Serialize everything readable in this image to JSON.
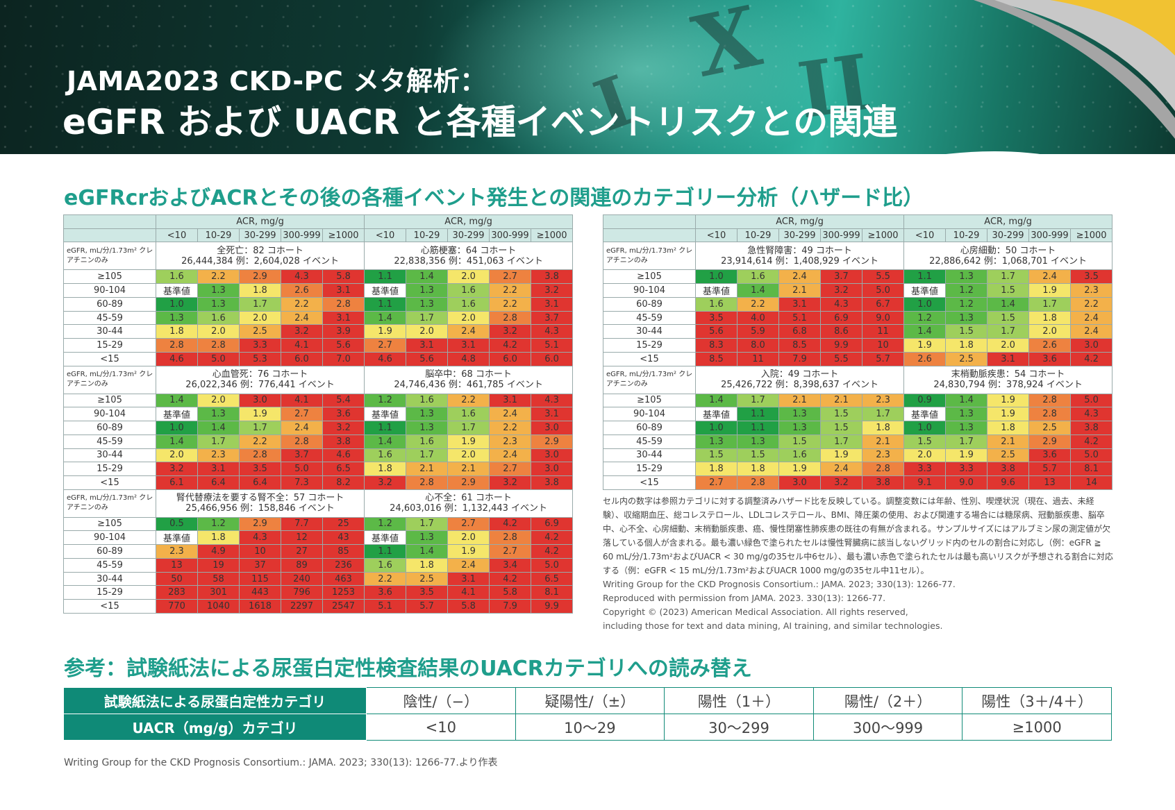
{
  "header": {
    "line1": "JAMA2023 CKD-PC メタ解析：",
    "line2": "eGFR および UACR と各種イベントリスクとの関連"
  },
  "subtitle": "eGFRcrおよびACRとその後の各種イベント発生との関連のカテゴリー分析（ハザード比）",
  "acr_label": "ACR, mg/g",
  "acr_cols": [
    "<10",
    "10-29",
    "30-299",
    "300-999",
    "≥1000"
  ],
  "egfr_rows": [
    "≥105",
    "90-104",
    "60-89",
    "45-59",
    "30-44",
    "15-29",
    "<15"
  ],
  "egfr_desc": "eGFR, mL/分/1.73m² クレアチニンのみ",
  "colors": {
    "dgreen": "#21a045",
    "green": "#5cb947",
    "lgreen": "#9ecf5c",
    "yellow": "#f5e66a",
    "orange": "#f3b14a",
    "dorange": "#ee8240",
    "red": "#e03530",
    "ref": "#ffffff"
  },
  "panels": [
    {
      "title": "全死亡：82 コホート",
      "counts": "26,444,384 例：2,604,028 イベント",
      "values": [
        [
          "1.6",
          "2.2",
          "2.9",
          "4.3",
          "5.8"
        ],
        [
          "基準値",
          "1.3",
          "1.8",
          "2.6",
          "3.1"
        ],
        [
          "1.0",
          "1.3",
          "1.7",
          "2.2",
          "2.8"
        ],
        [
          "1.3",
          "1.6",
          "2.0",
          "2.4",
          "3.1"
        ],
        [
          "1.8",
          "2.0",
          "2.5",
          "3.2",
          "3.9"
        ],
        [
          "2.8",
          "2.8",
          "3.3",
          "4.1",
          "5.6"
        ],
        [
          "4.6",
          "5.0",
          "5.3",
          "6.0",
          "7.0"
        ]
      ]
    },
    {
      "title": "心筋梗塞：64 コホート",
      "counts": "22,838,356 例：451,063 イベント",
      "values": [
        [
          "1.1",
          "1.4",
          "2.0",
          "2.7",
          "3.8"
        ],
        [
          "基準値",
          "1.3",
          "1.6",
          "2.2",
          "3.2"
        ],
        [
          "1.1",
          "1.3",
          "1.6",
          "2.2",
          "3.1"
        ],
        [
          "1.4",
          "1.7",
          "2.0",
          "2.8",
          "3.7"
        ],
        [
          "1.9",
          "2.0",
          "2.4",
          "3.2",
          "4.3"
        ],
        [
          "2.7",
          "3.1",
          "3.1",
          "4.2",
          "5.1"
        ],
        [
          "4.6",
          "5.6",
          "4.8",
          "6.0",
          "6.0"
        ]
      ]
    },
    {
      "title": "急性腎障害：49 コホート",
      "counts": "23,914,614 例：1,408,929 イベント",
      "values": [
        [
          "1.0",
          "1.6",
          "2.4",
          "3.7",
          "5.5"
        ],
        [
          "基準値",
          "1.4",
          "2.1",
          "3.2",
          "5.0"
        ],
        [
          "1.6",
          "2.2",
          "3.1",
          "4.3",
          "6.7"
        ],
        [
          "3.5",
          "4.0",
          "5.1",
          "6.9",
          "9.0"
        ],
        [
          "5.6",
          "5.9",
          "6.8",
          "8.6",
          "11"
        ],
        [
          "8.3",
          "8.0",
          "8.5",
          "9.9",
          "10"
        ],
        [
          "8.5",
          "11",
          "7.9",
          "5.5",
          "5.7"
        ]
      ]
    },
    {
      "title": "心房細動：50 コホート",
      "counts": "22,886,642 例：1,068,701 イベント",
      "values": [
        [
          "1.1",
          "1.3",
          "1.7",
          "2.4",
          "3.5"
        ],
        [
          "基準値",
          "1.2",
          "1.5",
          "1.9",
          "2.3"
        ],
        [
          "1.0",
          "1.2",
          "1.4",
          "1.7",
          "2.2"
        ],
        [
          "1.2",
          "1.3",
          "1.5",
          "1.8",
          "2.4"
        ],
        [
          "1.4",
          "1.5",
          "1.7",
          "2.0",
          "2.4"
        ],
        [
          "1.9",
          "1.8",
          "2.0",
          "2.6",
          "3.0"
        ],
        [
          "2.6",
          "2.5",
          "3.1",
          "3.6",
          "4.2"
        ]
      ]
    },
    {
      "title": "心血管死：76 コホート",
      "counts": "26,022,346 例：776,441 イベント",
      "values": [
        [
          "1.4",
          "2.0",
          "3.0",
          "4.1",
          "5.4"
        ],
        [
          "基準値",
          "1.3",
          "1.9",
          "2.7",
          "3.6"
        ],
        [
          "1.0",
          "1.4",
          "1.7",
          "2.4",
          "3.2"
        ],
        [
          "1.4",
          "1.7",
          "2.2",
          "2.8",
          "3.8"
        ],
        [
          "2.0",
          "2.3",
          "2.8",
          "3.7",
          "4.6"
        ],
        [
          "3.2",
          "3.1",
          "3.5",
          "5.0",
          "6.5"
        ],
        [
          "6.1",
          "6.4",
          "6.4",
          "7.3",
          "8.2"
        ]
      ]
    },
    {
      "title": "脳卒中：68 コホート",
      "counts": "24,746,436 例：461,785 イベント",
      "values": [
        [
          "1.2",
          "1.6",
          "2.2",
          "3.1",
          "4.3"
        ],
        [
          "基準値",
          "1.3",
          "1.6",
          "2.4",
          "3.1"
        ],
        [
          "1.1",
          "1.3",
          "1.7",
          "2.2",
          "3.0"
        ],
        [
          "1.4",
          "1.6",
          "1.9",
          "2.3",
          "2.9"
        ],
        [
          "1.6",
          "1.7",
          "2.0",
          "2.4",
          "3.0"
        ],
        [
          "1.8",
          "2.1",
          "2.1",
          "2.7",
          "3.0"
        ],
        [
          "3.2",
          "2.8",
          "2.9",
          "3.2",
          "3.8"
        ]
      ]
    },
    {
      "title": "入院：49 コホート",
      "counts": "25,426,722 例：8,398,637 イベント",
      "values": [
        [
          "1.4",
          "1.7",
          "2.1",
          "2.1",
          "2.3"
        ],
        [
          "基準値",
          "1.1",
          "1.3",
          "1.5",
          "1.7"
        ],
        [
          "1.0",
          "1.1",
          "1.3",
          "1.5",
          "1.8"
        ],
        [
          "1.3",
          "1.3",
          "1.5",
          "1.7",
          "2.1"
        ],
        [
          "1.5",
          "1.5",
          "1.6",
          "1.9",
          "2.3"
        ],
        [
          "1.8",
          "1.8",
          "1.9",
          "2.4",
          "2.8"
        ],
        [
          "2.7",
          "2.8",
          "3.0",
          "3.2",
          "3.8"
        ]
      ]
    },
    {
      "title": "末梢動脈疾患：54 コホート",
      "counts": "24,830,794 例：378,924 イベント",
      "values": [
        [
          "0.9",
          "1.4",
          "1.9",
          "2.8",
          "5.0"
        ],
        [
          "基準値",
          "1.3",
          "1.9",
          "2.8",
          "4.3"
        ],
        [
          "1.0",
          "1.3",
          "1.8",
          "2.5",
          "3.8"
        ],
        [
          "1.5",
          "1.7",
          "2.1",
          "2.9",
          "4.2"
        ],
        [
          "2.0",
          "1.9",
          "2.5",
          "3.6",
          "5.0"
        ],
        [
          "3.3",
          "3.3",
          "3.8",
          "5.7",
          "8.1"
        ],
        [
          "9.1",
          "9.0",
          "9.6",
          "13",
          "14"
        ]
      ]
    },
    {
      "title": "腎代替療法を要する腎不全：57 コホート",
      "counts": "25,466,956 例：158,846 イベント",
      "values": [
        [
          "0.5",
          "1.2",
          "2.9",
          "7.7",
          "25"
        ],
        [
          "基準値",
          "1.8",
          "4.3",
          "12",
          "43"
        ],
        [
          "2.3",
          "4.9",
          "10",
          "27",
          "85"
        ],
        [
          "13",
          "19",
          "37",
          "89",
          "236"
        ],
        [
          "50",
          "58",
          "115",
          "240",
          "463"
        ],
        [
          "283",
          "301",
          "443",
          "796",
          "1253"
        ],
        [
          "770",
          "1040",
          "1618",
          "2297",
          "2547"
        ]
      ]
    },
    {
      "title": "心不全：61 コホート",
      "counts": "24,603,016 例：1,132,443 イベント",
      "values": [
        [
          "1.2",
          "1.7",
          "2.7",
          "4.2",
          "6.9"
        ],
        [
          "基準値",
          "1.3",
          "2.0",
          "2.8",
          "4.2"
        ],
        [
          "1.1",
          "1.4",
          "1.9",
          "2.7",
          "4.2"
        ],
        [
          "1.6",
          "1.8",
          "2.4",
          "3.4",
          "5.0"
        ],
        [
          "2.2",
          "2.5",
          "3.1",
          "4.2",
          "6.5"
        ],
        [
          "3.6",
          "3.5",
          "4.1",
          "5.8",
          "8.1"
        ],
        [
          "5.1",
          "5.7",
          "5.8",
          "7.9",
          "9.9"
        ]
      ]
    }
  ],
  "note": "セル内の数字は参照カテゴリに対する調整済みハザード比を反映している。調整変数には年齢、性別、喫煙状況（現在、過去、未経験）、収縮期血圧、総コレステロール、LDLコレステロール、BMI、降圧薬の使用、および関連する場合には糖尿病、冠動脈疾患、脳卒中、心不全、心房細動、末梢動脈疾患、癌、慢性閉塞性肺疾患の既往の有無が含まれる。サンプルサイズにはアルブミン尿の測定値が欠落している個人が含まれる。最も濃い緑色で塗られたセルは慢性腎臓病に該当しないグリッド内のセルの割合に対応し（例：eGFR ≧ 60 mL/分/1.73m²およびUACR < 30 mg/gの35セル中6セル）、最も濃い赤色で塗られたセルは最も高いリスクが予想される割合に対応する（例：eGFR < 15 mL/分/1.73m²およびUACR 1000 mg/gの35セル中11セル）。",
  "refs": [
    "Writing Group for the CKD Prognosis Consortium.: JAMA. 2023; 330(13): 1266-77.",
    "Reproduced with permission from JAMA. 2023. 330(13): 1266-77.",
    "Copyright © (2023) American Medical Association. All rights reserved,",
    "including those for text and data mining, AI training, and similar technologies."
  ],
  "subtitle2": "参考：試験紙法による尿蛋白定性検査結果のUACRカテゴリへの読み替え",
  "dipstick": {
    "row1_label": "試験紙法による尿蛋白定性カテゴリ",
    "row1": [
      "陰性/（−）",
      "疑陽性/（±）",
      "陽性（1＋）",
      "陽性/（2＋）",
      "陽性（3＋/4＋）"
    ],
    "row2_label": "UACR（mg/g）カテゴリ",
    "row2": [
      "<10",
      "10〜29",
      "30〜299",
      "300〜999",
      "≥1000"
    ]
  },
  "footnote": "Writing Group for the CKD Prognosis Consortium.: JAMA. 2023; 330(13): 1266-77.より作表"
}
